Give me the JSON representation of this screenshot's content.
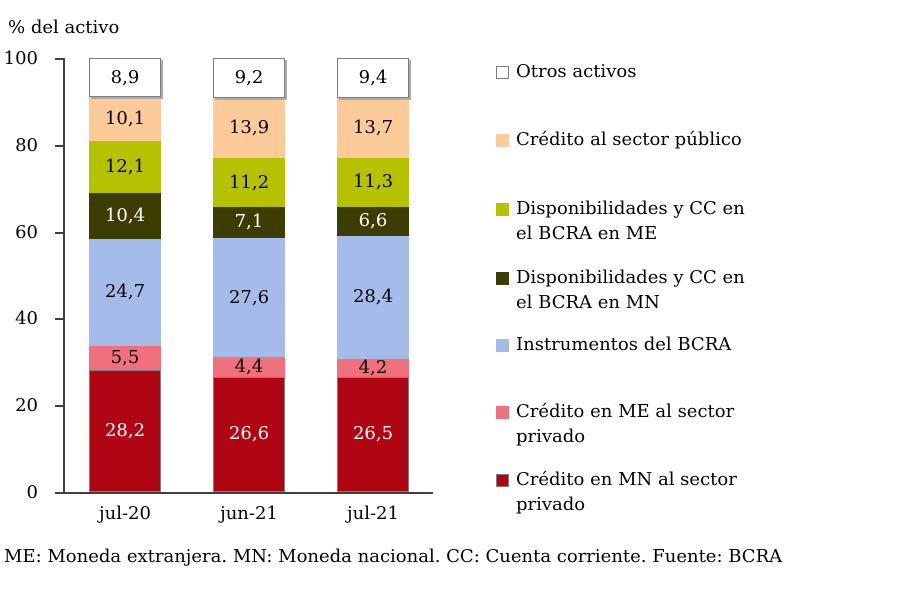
{
  "page": {
    "background": "#ffffff"
  },
  "footnote": "ME: Moneda extranjera. MN: Moneda nacional. CC: Cuenta corriente. Fuente: BCRA",
  "chart_data": {
    "type": "bar",
    "stacked": true,
    "title": "% del activo",
    "categories": [
      "jul-20",
      "jun-21",
      "jul-21"
    ],
    "series": [
      {
        "label": "Otros activos",
        "color": "#FFFFFF",
        "border": "#7F7F7F",
        "shadow": true,
        "text_color": "#000000",
        "values": [
          8.9,
          9.2,
          9.4
        ]
      },
      {
        "label": "Crédito al sector público",
        "color": "#FCCB99",
        "text_color": "#000000",
        "values": [
          10.1,
          13.9,
          13.7
        ]
      },
      {
        "label": "Disponibilidades y CC en\nel BCRA en ME",
        "color": "#B6C200",
        "text_color": "#000000",
        "values": [
          12.1,
          11.2,
          11.3
        ]
      },
      {
        "label": "Disponibilidades y CC en\nel BCRA en MN",
        "color": "#3C3D02",
        "text_color": "#FFFFFF",
        "values": [
          10.4,
          7.1,
          6.6
        ]
      },
      {
        "label": "Instrumentos del BCRA",
        "color": "#A5BCEB",
        "text_color": "#000000",
        "values": [
          24.7,
          27.6,
          28.4
        ]
      },
      {
        "label": "Crédito en ME al sector\nprivado",
        "color": "#F0707B",
        "text_color": "#000000",
        "values": [
          5.5,
          4.4,
          4.2
        ]
      },
      {
        "label": "Crédito en MN al sector\nprivado",
        "color": "#B00613",
        "border": "#7F7F7F",
        "text_color": "#FFFFFF",
        "values": [
          28.2,
          26.6,
          26.5
        ]
      }
    ],
    "ylim": [
      0,
      100
    ],
    "yticks": [
      0,
      20,
      40,
      60,
      80,
      100
    ],
    "grid": false,
    "legend_position": "right",
    "decimal_separator": ",",
    "axis_color": "#404040"
  }
}
